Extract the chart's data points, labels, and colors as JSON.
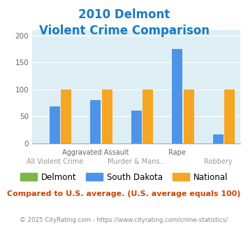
{
  "title_line1": "2010 Delmont",
  "title_line2": "Violent Crime Comparison",
  "title_color": "#1a7abf",
  "categories": [
    "All Violent Crime",
    "Aggravated Assault",
    "Murder & Mans...",
    "Rape",
    "Robbery"
  ],
  "series": {
    "Delmont": [
      0,
      0,
      0,
      0,
      0
    ],
    "South Dakota": [
      68,
      80,
      61,
      175,
      17
    ],
    "National": [
      100,
      100,
      100,
      100,
      100
    ]
  },
  "bar_colors": {
    "Delmont": "#7ab648",
    "South Dakota": "#4d94e8",
    "National": "#f5a623"
  },
  "ylim": [
    0,
    210
  ],
  "yticks": [
    0,
    50,
    100,
    150,
    200
  ],
  "plot_bg_color": "#ddeef5",
  "fig_bg_color": "#ffffff",
  "footer_text": "Compared to U.S. average. (U.S. average equals 100)",
  "footer_color": "#cc4400",
  "copyright_text": "© 2025 CityRating.com - https://www.cityrating.com/crime-statistics/",
  "copyright_color": "#888888",
  "legend_labels": [
    "Delmont",
    "South Dakota",
    "National"
  ],
  "bar_width": 0.28
}
